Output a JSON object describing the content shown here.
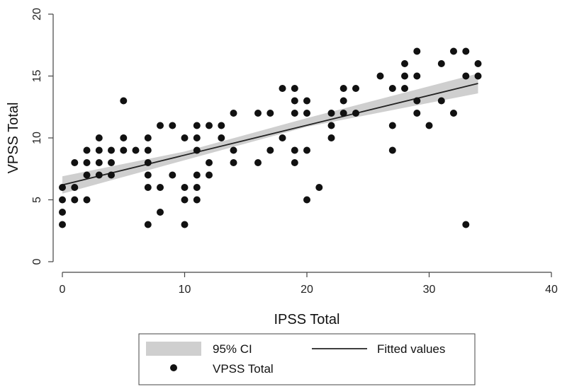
{
  "chart_data": {
    "type": "scatter",
    "xlabel": "IPSS Total",
    "ylabel": "VPSS Total",
    "xlim": [
      0,
      40
    ],
    "ylim": [
      0,
      20
    ],
    "xticks": [
      0,
      10,
      20,
      30,
      40
    ],
    "yticks": [
      0,
      5,
      10,
      15,
      20
    ],
    "grid": false,
    "legend_position": "bottom",
    "legend": {
      "ci_label": "95% CI",
      "fit_label": "Fitted values",
      "points_label": "VPSS Total"
    },
    "colors": {
      "points": "#111111",
      "fit_line": "#222222",
      "ci_band": "#cfcfcf",
      "axis": "#444444"
    },
    "fit": {
      "x": [
        0,
        34
      ],
      "y": [
        6.2,
        14.4
      ]
    },
    "ci": {
      "x": [
        0,
        10,
        20,
        34
      ],
      "lower": [
        5.5,
        8.2,
        10.9,
        13.6
      ],
      "upper": [
        6.9,
        8.9,
        11.6,
        15.2
      ]
    },
    "series": [
      {
        "name": "VPSS Total",
        "points": [
          [
            0,
            3
          ],
          [
            0,
            4
          ],
          [
            0,
            5
          ],
          [
            0,
            6
          ],
          [
            1,
            5
          ],
          [
            1,
            6
          ],
          [
            1,
            8
          ],
          [
            2,
            5
          ],
          [
            2,
            7
          ],
          [
            2,
            8
          ],
          [
            2,
            9
          ],
          [
            3,
            7
          ],
          [
            3,
            8
          ],
          [
            3,
            9
          ],
          [
            3,
            10
          ],
          [
            4,
            7
          ],
          [
            4,
            8
          ],
          [
            4,
            9
          ],
          [
            5,
            9
          ],
          [
            5,
            10
          ],
          [
            5,
            13
          ],
          [
            6,
            9
          ],
          [
            7,
            3
          ],
          [
            7,
            6
          ],
          [
            7,
            7
          ],
          [
            7,
            8
          ],
          [
            7,
            9
          ],
          [
            7,
            10
          ],
          [
            8,
            4
          ],
          [
            8,
            6
          ],
          [
            8,
            11
          ],
          [
            9,
            7
          ],
          [
            9,
            11
          ],
          [
            10,
            3
          ],
          [
            10,
            5
          ],
          [
            10,
            6
          ],
          [
            10,
            10
          ],
          [
            11,
            5
          ],
          [
            11,
            6
          ],
          [
            11,
            7
          ],
          [
            11,
            9
          ],
          [
            11,
            10
          ],
          [
            11,
            11
          ],
          [
            12,
            7
          ],
          [
            12,
            8
          ],
          [
            12,
            11
          ],
          [
            13,
            10
          ],
          [
            13,
            11
          ],
          [
            14,
            8
          ],
          [
            14,
            9
          ],
          [
            14,
            12
          ],
          [
            16,
            8
          ],
          [
            16,
            12
          ],
          [
            17,
            9
          ],
          [
            17,
            12
          ],
          [
            18,
            10
          ],
          [
            18,
            14
          ],
          [
            19,
            8
          ],
          [
            19,
            9
          ],
          [
            19,
            12
          ],
          [
            19,
            13
          ],
          [
            19,
            14
          ],
          [
            20,
            5
          ],
          [
            20,
            9
          ],
          [
            20,
            12
          ],
          [
            20,
            13
          ],
          [
            21,
            6
          ],
          [
            22,
            10
          ],
          [
            22,
            11
          ],
          [
            22,
            12
          ],
          [
            23,
            12
          ],
          [
            23,
            13
          ],
          [
            23,
            14
          ],
          [
            24,
            12
          ],
          [
            24,
            14
          ],
          [
            26,
            15
          ],
          [
            27,
            9
          ],
          [
            27,
            11
          ],
          [
            27,
            14
          ],
          [
            28,
            14
          ],
          [
            28,
            15
          ],
          [
            28,
            16
          ],
          [
            29,
            12
          ],
          [
            29,
            13
          ],
          [
            29,
            15
          ],
          [
            29,
            17
          ],
          [
            30,
            11
          ],
          [
            31,
            13
          ],
          [
            31,
            16
          ],
          [
            32,
            12
          ],
          [
            32,
            17
          ],
          [
            33,
            3
          ],
          [
            33,
            15
          ],
          [
            33,
            17
          ],
          [
            34,
            15
          ],
          [
            34,
            16
          ]
        ]
      }
    ]
  }
}
